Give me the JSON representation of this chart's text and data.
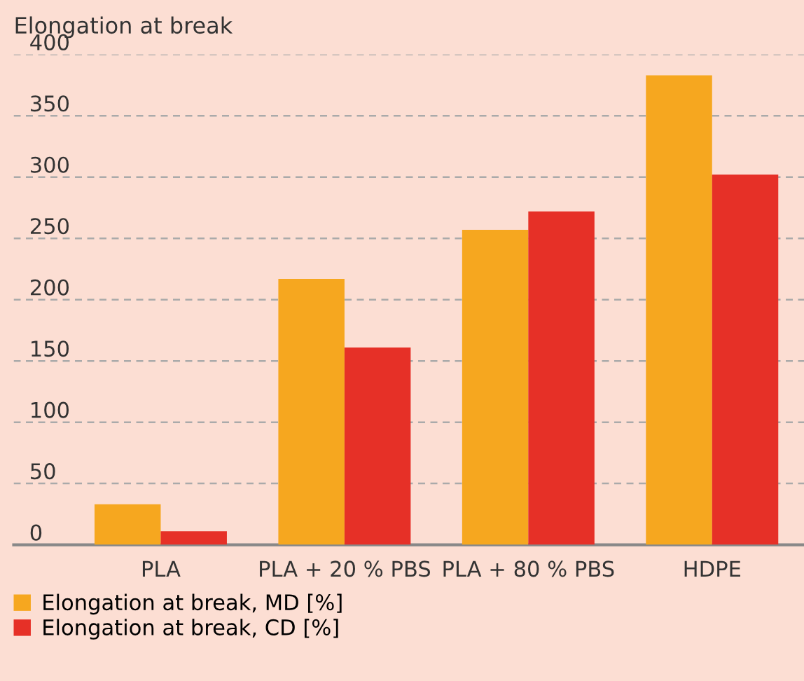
{
  "chart_data": {
    "type": "bar",
    "ylabel": "Elongation at break",
    "categories": [
      "PLA",
      "PLA + 20 % PBS",
      "PLA + 80 % PBS",
      "HDPE"
    ],
    "series": [
      {
        "name": "Elongation at break, MD [%]",
        "color": "#f6a71f",
        "values": [
          33,
          217,
          257,
          383
        ]
      },
      {
        "name": "Elongation at break, CD [%]",
        "color": "#e63027",
        "values": [
          11,
          161,
          272,
          302
        ]
      }
    ],
    "ylim": [
      0,
      400
    ],
    "yticks": [
      0,
      50,
      100,
      150,
      200,
      250,
      300,
      350,
      400
    ],
    "grid": "y",
    "legend": "bottom left"
  }
}
